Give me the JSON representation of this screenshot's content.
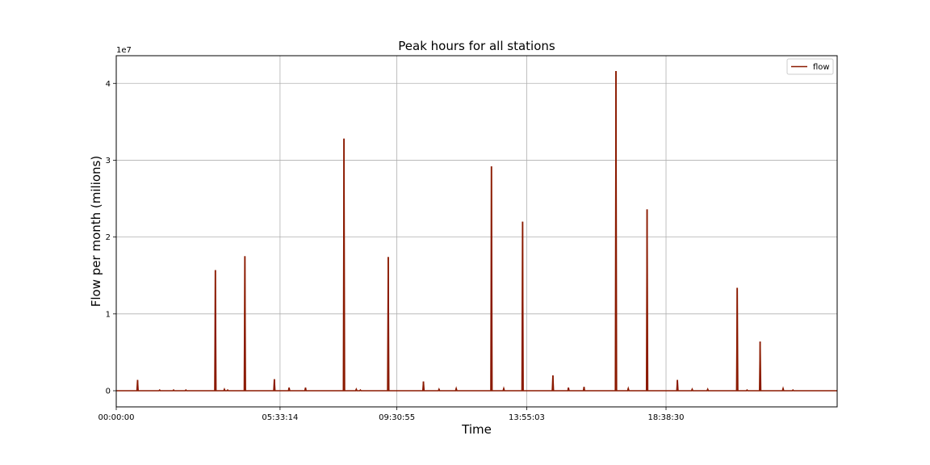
{
  "chart_data": {
    "type": "line",
    "title": "Peak hours for all stations",
    "xlabel": "Time",
    "ylabel": "Flow per month (milions)",
    "y_offset_text": "1e7",
    "x_unit": "seconds since 00:00:00",
    "xlim": [
      0,
      88000
    ],
    "ylim": [
      -2.1,
      43.6
    ],
    "y_scale_note": "y values in units of 1e7",
    "x_ticks": [
      {
        "value": 0,
        "label": "00:00:00"
      },
      {
        "value": 19994,
        "label": "05:33:14"
      },
      {
        "value": 34255,
        "label": "09:30:55"
      },
      {
        "value": 50103,
        "label": "13:55:03"
      },
      {
        "value": 67110,
        "label": "18:38:30"
      }
    ],
    "y_ticks": [
      {
        "value": 0,
        "label": "0"
      },
      {
        "value": 10,
        "label": "1"
      },
      {
        "value": 20,
        "label": "2"
      },
      {
        "value": 30,
        "label": "3"
      },
      {
        "value": 40,
        "label": "4"
      }
    ],
    "grid": true,
    "legend": {
      "placement": "top-right",
      "entries": [
        "flow"
      ]
    },
    "series": [
      {
        "name": "flow",
        "color": "#8b1a00",
        "spikes": [
          {
            "x": 2600,
            "y": 1.4
          },
          {
            "x": 5300,
            "y": 0.1
          },
          {
            "x": 7000,
            "y": 0.1
          },
          {
            "x": 8500,
            "y": 0.1
          },
          {
            "x": 12100,
            "y": 15.7
          },
          {
            "x": 13200,
            "y": 0.2
          },
          {
            "x": 13600,
            "y": 0.1
          },
          {
            "x": 15700,
            "y": 17.5
          },
          {
            "x": 19300,
            "y": 1.5
          },
          {
            "x": 21100,
            "y": 0.4
          },
          {
            "x": 23100,
            "y": 0.4
          },
          {
            "x": 27800,
            "y": 32.8
          },
          {
            "x": 29300,
            "y": 0.2
          },
          {
            "x": 29800,
            "y": 0.1
          },
          {
            "x": 33200,
            "y": 17.4
          },
          {
            "x": 37500,
            "y": 1.2
          },
          {
            "x": 39400,
            "y": 0.2
          },
          {
            "x": 41500,
            "y": 0.3
          },
          {
            "x": 45800,
            "y": 29.2
          },
          {
            "x": 47300,
            "y": 0.3
          },
          {
            "x": 49600,
            "y": 22.0
          },
          {
            "x": 53300,
            "y": 2.0
          },
          {
            "x": 55200,
            "y": 0.4
          },
          {
            "x": 57100,
            "y": 0.5
          },
          {
            "x": 61000,
            "y": 41.6
          },
          {
            "x": 62500,
            "y": 0.3
          },
          {
            "x": 64800,
            "y": 23.6
          },
          {
            "x": 68500,
            "y": 1.4
          },
          {
            "x": 70300,
            "y": 0.2
          },
          {
            "x": 72200,
            "y": 0.2
          },
          {
            "x": 75800,
            "y": 13.4
          },
          {
            "x": 77000,
            "y": 0.1
          },
          {
            "x": 78600,
            "y": 6.4
          },
          {
            "x": 81400,
            "y": 0.3
          },
          {
            "x": 82600,
            "y": 0.1
          }
        ]
      }
    ]
  }
}
